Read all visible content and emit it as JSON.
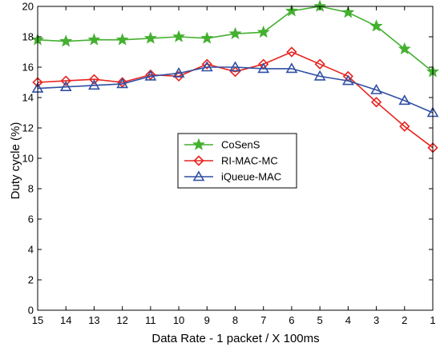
{
  "chart_data": {
    "type": "line",
    "title": "",
    "xlabel": "Data Rate - 1 packet / X 100ms",
    "ylabel": "Duty cycle (%)",
    "x": [
      15,
      14,
      13,
      12,
      11,
      10,
      9,
      8,
      7,
      6,
      5,
      4,
      3,
      2,
      1
    ],
    "x_reversed": true,
    "xlim": [
      15,
      1
    ],
    "ylim": [
      0,
      20
    ],
    "yticks": [
      0,
      2,
      4,
      6,
      8,
      10,
      12,
      14,
      16,
      18,
      20
    ],
    "grid": false,
    "legend_position": "center",
    "series": [
      {
        "name": "CoSenS",
        "color": "#44b030",
        "marker": "star",
        "values": [
          17.8,
          17.7,
          17.8,
          17.8,
          17.9,
          18.0,
          17.9,
          18.2,
          18.3,
          19.7,
          20.0,
          19.6,
          18.7,
          17.2,
          15.7
        ]
      },
      {
        "name": "RI-MAC-MC",
        "color": "#e8231f",
        "marker": "diamond",
        "values": [
          15.0,
          15.1,
          15.2,
          15.0,
          15.5,
          15.4,
          16.2,
          15.7,
          16.2,
          17.0,
          16.2,
          15.4,
          13.7,
          12.1,
          10.7
        ]
      },
      {
        "name": "iQueue-MAC",
        "color": "#2f4fa2",
        "marker": "triangle",
        "values": [
          14.6,
          14.7,
          14.8,
          14.9,
          15.4,
          15.6,
          16.0,
          16.0,
          15.9,
          15.9,
          15.4,
          15.1,
          14.5,
          13.8,
          13.0
        ]
      }
    ]
  }
}
